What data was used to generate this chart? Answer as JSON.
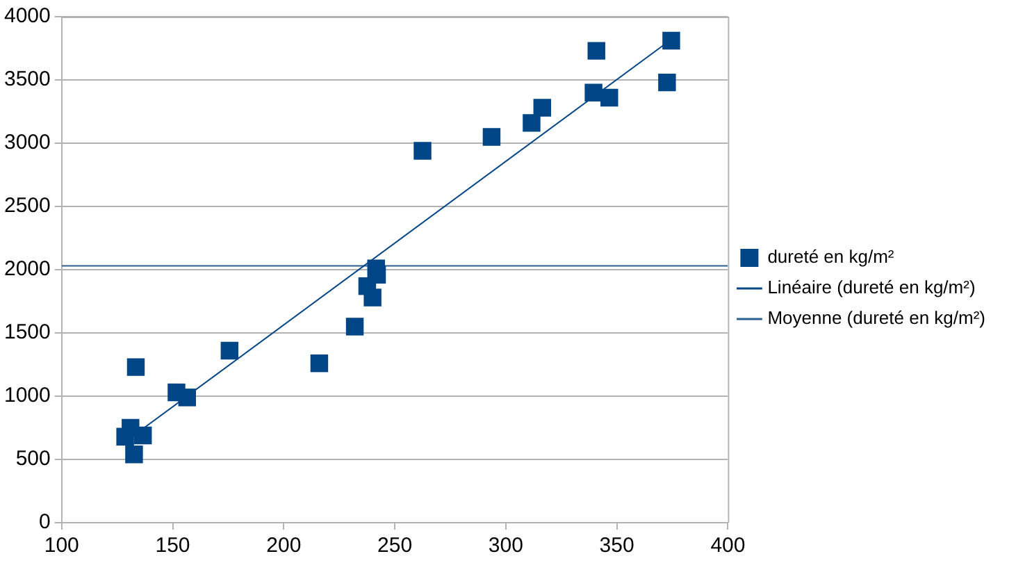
{
  "chart_data": {
    "type": "scatter",
    "xlim": [
      100,
      400
    ],
    "xticks": [
      100,
      150,
      200,
      250,
      300,
      350,
      400
    ],
    "ylim": [
      0,
      4000
    ],
    "yticks": [
      0,
      500,
      1000,
      1500,
      2000,
      2500,
      3000,
      3500,
      4000
    ],
    "grid": "y",
    "legend": "right",
    "series": [
      {
        "name": "dureté en kg/m²",
        "color": "#004586",
        "marker": "square",
        "x": [
          128.6,
          131,
          132.6,
          136.6,
          133.4,
          151.7,
          156.5,
          175.6,
          216,
          232,
          237.6,
          240,
          241.6,
          242,
          262.5,
          293.6,
          311.6,
          316.4,
          339.5,
          346.6,
          340.8,
          374.5,
          372.6
        ],
        "values": [
          680,
          750,
          540,
          690,
          1230,
          1030,
          990,
          1360,
          1260,
          1550,
          1870,
          1780,
          2010,
          1960,
          2940,
          3050,
          3160,
          3280,
          3400,
          3360,
          3730,
          3810,
          3480
        ]
      },
      {
        "name": "Linéaire (dureté en kg/m²)",
        "color": "#004586",
        "type": "line",
        "marker": "none",
        "x": [
          128.6,
          374.5
        ],
        "values": [
          640,
          3820
        ]
      },
      {
        "name": "Moyenne (dureté en kg/m²)",
        "color": "#2a5f8f",
        "type": "line",
        "marker": "none",
        "x": [
          100,
          400
        ],
        "values": [
          2030,
          2030
        ]
      }
    ]
  }
}
